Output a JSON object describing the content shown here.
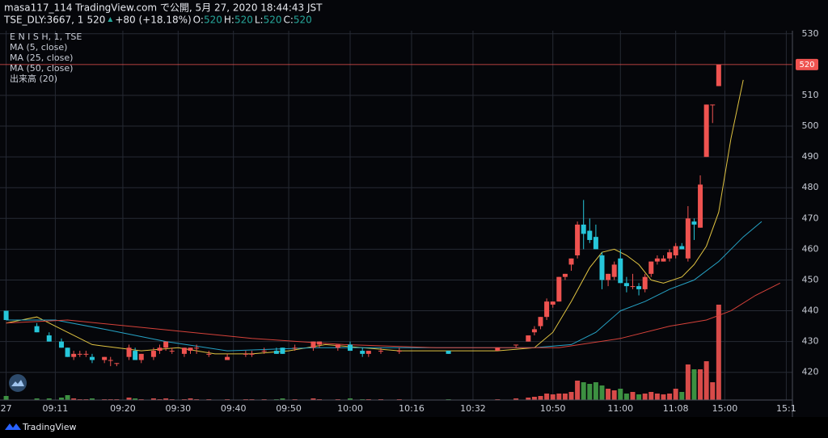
{
  "header": {
    "line1": "masa117_114 TradingView.com で公開, 5月 27, 2020 18:44:43 JST",
    "symbol": "TSE_DLY:3667, 1",
    "price": "520",
    "change": "+80 (+18.18%)",
    "ohlc": [
      {
        "label": "O:",
        "value": "520"
      },
      {
        "label": "H:",
        "value": "520"
      },
      {
        "label": "L:",
        "value": "520"
      },
      {
        "label": "C:",
        "value": "520"
      }
    ]
  },
  "legend": {
    "instrument": "E N I S H, 1, TSE",
    "volume_label": "出来高 (20)"
  },
  "footer": {
    "brand": "TradingView"
  },
  "chart_data": {
    "type": "candlestick",
    "up_color": "#ef5350",
    "down_color": "#26c6da",
    "volume_up_color": "#ef5350",
    "volume_down_color": "#43a047",
    "grid": true,
    "xlim": [
      -1,
      128
    ],
    "ylim": [
      411,
      531
    ],
    "yticks": [
      420,
      430,
      440,
      450,
      460,
      470,
      480,
      490,
      500,
      510,
      530
    ],
    "last_price": 520,
    "last_price_color": "#ef5350",
    "xticks": [
      {
        "value": 0,
        "label": "27"
      },
      {
        "value": 8,
        "label": "09:11"
      },
      {
        "value": 19,
        "label": "09:20"
      },
      {
        "value": 28,
        "label": "09:30"
      },
      {
        "value": 37,
        "label": "09:40"
      },
      {
        "value": 46,
        "label": "09:50"
      },
      {
        "value": 56,
        "label": "10:00"
      },
      {
        "value": 66,
        "label": "10:16"
      },
      {
        "value": 76,
        "label": "10:32"
      },
      {
        "value": 89,
        "label": "10:50"
      },
      {
        "value": 100,
        "label": "11:00"
      },
      {
        "value": 109,
        "label": "11:08"
      },
      {
        "value": 117,
        "label": "15:00"
      },
      {
        "value": 127,
        "label": "15:1"
      }
    ],
    "candles": [
      {
        "x": 0,
        "open": 440,
        "high": 440,
        "low": 437,
        "close": 437,
        "volume": 5
      },
      {
        "x": 5,
        "open": 435,
        "high": 436,
        "low": 433,
        "close": 433,
        "volume": 2
      },
      {
        "x": 7,
        "open": 432,
        "high": 433,
        "low": 430,
        "close": 430,
        "volume": 2
      },
      {
        "x": 9,
        "open": 430,
        "high": 431,
        "low": 428,
        "close": 428,
        "volume": 3
      },
      {
        "x": 10,
        "open": 428,
        "high": 428,
        "low": 425,
        "close": 425,
        "volume": 6
      },
      {
        "x": 11,
        "open": 425,
        "high": 427,
        "low": 424,
        "close": 426,
        "volume": 2
      },
      {
        "x": 12,
        "open": 426,
        "high": 427,
        "low": 425,
        "close": 426,
        "volume": 1
      },
      {
        "x": 13,
        "open": 426,
        "high": 427,
        "low": 425,
        "close": 426,
        "volume": 1
      },
      {
        "x": 14,
        "open": 425,
        "high": 426,
        "low": 423,
        "close": 424,
        "volume": 2
      },
      {
        "x": 16,
        "open": 424,
        "high": 425,
        "low": 423,
        "close": 425,
        "volume": 1
      },
      {
        "x": 17,
        "open": 424,
        "high": 425,
        "low": 422,
        "close": 424,
        "volume": 1
      },
      {
        "x": 18,
        "open": 423,
        "high": 423,
        "low": 422,
        "close": 423,
        "volume": 1
      },
      {
        "x": 20,
        "open": 425,
        "high": 429,
        "low": 424,
        "close": 428,
        "volume": 3
      },
      {
        "x": 21,
        "open": 427,
        "high": 428,
        "low": 424,
        "close": 424,
        "volume": 2
      },
      {
        "x": 22,
        "open": 424,
        "high": 426,
        "low": 423,
        "close": 426,
        "volume": 1
      },
      {
        "x": 24,
        "open": 425,
        "high": 428,
        "low": 424,
        "close": 427,
        "volume": 2
      },
      {
        "x": 25,
        "open": 427,
        "high": 429,
        "low": 426,
        "close": 428,
        "volume": 1
      },
      {
        "x": 26,
        "open": 428,
        "high": 430,
        "low": 427,
        "close": 430,
        "volume": 2
      },
      {
        "x": 27,
        "open": 427,
        "high": 428,
        "low": 426,
        "close": 427,
        "volume": 1
      },
      {
        "x": 29,
        "open": 426,
        "high": 428,
        "low": 425,
        "close": 428,
        "volume": 1
      },
      {
        "x": 30,
        "open": 427,
        "high": 428,
        "low": 426,
        "close": 428,
        "volume": 2
      },
      {
        "x": 31,
        "open": 428,
        "high": 429,
        "low": 426,
        "close": 428,
        "volume": 1
      },
      {
        "x": 33,
        "open": 426,
        "high": 427,
        "low": 425,
        "close": 426,
        "volume": 1
      },
      {
        "x": 36,
        "open": 424,
        "high": 426,
        "low": 424,
        "close": 425,
        "volume": 1
      },
      {
        "x": 39,
        "open": 426,
        "high": 427,
        "low": 425,
        "close": 426,
        "volume": 1
      },
      {
        "x": 40,
        "open": 426,
        "high": 427,
        "low": 425,
        "close": 426,
        "volume": 1
      },
      {
        "x": 42,
        "open": 427,
        "high": 428,
        "low": 426,
        "close": 427,
        "volume": 1
      },
      {
        "x": 44,
        "open": 427,
        "high": 428,
        "low": 426,
        "close": 426,
        "volume": 1
      },
      {
        "x": 45,
        "open": 428,
        "high": 428,
        "low": 426,
        "close": 426,
        "volume": 2
      },
      {
        "x": 47,
        "open": 428,
        "high": 429,
        "low": 427,
        "close": 428,
        "volume": 1
      },
      {
        "x": 50,
        "open": 428,
        "high": 430,
        "low": 427,
        "close": 430,
        "volume": 2
      },
      {
        "x": 51,
        "open": 429,
        "high": 430,
        "low": 428,
        "close": 430,
        "volume": 1
      },
      {
        "x": 54,
        "open": 428,
        "high": 429,
        "low": 427,
        "close": 429,
        "volume": 1
      },
      {
        "x": 56,
        "open": 429,
        "high": 430,
        "low": 427,
        "close": 427,
        "volume": 2
      },
      {
        "x": 58,
        "open": 427,
        "high": 428,
        "low": 425,
        "close": 426,
        "volume": 1
      },
      {
        "x": 59,
        "open": 426,
        "high": 427,
        "low": 425,
        "close": 427,
        "volume": 1
      },
      {
        "x": 61,
        "open": 427,
        "high": 428,
        "low": 426,
        "close": 427,
        "volume": 1
      },
      {
        "x": 64,
        "open": 427,
        "high": 428,
        "low": 426,
        "close": 427,
        "volume": 1
      },
      {
        "x": 72,
        "open": 427,
        "high": 427,
        "low": 426,
        "close": 426,
        "volume": 1
      },
      {
        "x": 80,
        "open": 427,
        "high": 428,
        "low": 427,
        "close": 428,
        "volume": 1
      },
      {
        "x": 83,
        "open": 429,
        "high": 429,
        "low": 428,
        "close": 429,
        "volume": 2
      },
      {
        "x": 85,
        "open": 430,
        "high": 432,
        "low": 430,
        "close": 432,
        "volume": 3
      },
      {
        "x": 86,
        "open": 433,
        "high": 435,
        "low": 432,
        "close": 434,
        "volume": 4
      },
      {
        "x": 87,
        "open": 435,
        "high": 438,
        "low": 434,
        "close": 438,
        "volume": 5
      },
      {
        "x": 88,
        "open": 438,
        "high": 444,
        "low": 437,
        "close": 443,
        "volume": 8
      },
      {
        "x": 89,
        "open": 442,
        "high": 443,
        "low": 441,
        "close": 443,
        "volume": 7
      },
      {
        "x": 90,
        "open": 443,
        "high": 451,
        "low": 443,
        "close": 451,
        "volume": 8
      },
      {
        "x": 91,
        "open": 451,
        "high": 452,
        "low": 450,
        "close": 452,
        "volume": 8
      },
      {
        "x": 92,
        "open": 455,
        "high": 457,
        "low": 453,
        "close": 457,
        "volume": 10
      },
      {
        "x": 93,
        "open": 458,
        "high": 469,
        "low": 457,
        "close": 468,
        "volume": 24
      },
      {
        "x": 94,
        "open": 468,
        "high": 476,
        "low": 460,
        "close": 465,
        "volume": 22
      },
      {
        "x": 95,
        "open": 466,
        "high": 470,
        "low": 462,
        "close": 463,
        "volume": 20
      },
      {
        "x": 96,
        "open": 464,
        "high": 468,
        "low": 460,
        "close": 460,
        "volume": 22
      },
      {
        "x": 97,
        "open": 458,
        "high": 459,
        "low": 447,
        "close": 450,
        "volume": 18
      },
      {
        "x": 98,
        "open": 450,
        "high": 452,
        "low": 448,
        "close": 452,
        "volume": 14
      },
      {
        "x": 99,
        "open": 451,
        "high": 456,
        "low": 450,
        "close": 455,
        "volume": 12
      },
      {
        "x": 100,
        "open": 457,
        "high": 460,
        "low": 449,
        "close": 449,
        "volume": 14
      },
      {
        "x": 101,
        "open": 449,
        "high": 451,
        "low": 446,
        "close": 448,
        "volume": 8
      },
      {
        "x": 102,
        "open": 448,
        "high": 452,
        "low": 447,
        "close": 448,
        "volume": 10
      },
      {
        "x": 103,
        "open": 448,
        "high": 449,
        "low": 445,
        "close": 447,
        "volume": 7
      },
      {
        "x": 104,
        "open": 447,
        "high": 452,
        "low": 446,
        "close": 451,
        "volume": 8
      },
      {
        "x": 105,
        "open": 452,
        "high": 456,
        "low": 451,
        "close": 456,
        "volume": 10
      },
      {
        "x": 106,
        "open": 456,
        "high": 458,
        "low": 455,
        "close": 457,
        "volume": 8
      },
      {
        "x": 107,
        "open": 456,
        "high": 458,
        "low": 456,
        "close": 457,
        "volume": 7
      },
      {
        "x": 108,
        "open": 457,
        "high": 460,
        "low": 456,
        "close": 459,
        "volume": 8
      },
      {
        "x": 109,
        "open": 458,
        "high": 462,
        "low": 457,
        "close": 461,
        "volume": 14
      },
      {
        "x": 110,
        "open": 461,
        "high": 462,
        "low": 460,
        "close": 460,
        "volume": 10
      },
      {
        "x": 111,
        "open": 457,
        "high": 474,
        "low": 456,
        "close": 470,
        "volume": 44
      },
      {
        "x": 112,
        "open": 469,
        "high": 470,
        "low": 463,
        "close": 468,
        "volume": 38
      },
      {
        "x": 113,
        "open": 467,
        "high": 484,
        "low": 467,
        "close": 481,
        "volume": 38
      },
      {
        "x": 114,
        "open": 490,
        "high": 507,
        "low": 490,
        "close": 507,
        "volume": 48
      },
      {
        "x": 115,
        "open": 507,
        "high": 507,
        "low": 501,
        "close": 507,
        "volume": 22
      },
      {
        "x": 116,
        "open": 513,
        "high": 520,
        "low": 513,
        "close": 520,
        "volume": 118
      }
    ],
    "series": [
      {
        "name": "MA (5, close)",
        "color": "#e0c341",
        "x": [
          0,
          5,
          10,
          14,
          18,
          22,
          28,
          34,
          40,
          46,
          52,
          58,
          64,
          72,
          80,
          86,
          89,
          92,
          95,
          97,
          99,
          101,
          103,
          105,
          107,
          110,
          112,
          114,
          116,
          118,
          120
        ],
        "values": [
          436,
          438,
          433,
          429,
          428,
          427,
          428,
          426,
          426,
          427,
          429,
          428,
          427,
          427,
          427,
          428,
          433,
          443,
          454,
          459,
          460,
          458,
          455,
          450,
          449,
          451,
          455,
          461,
          472,
          496,
          515
        ]
      },
      {
        "name": "MA (25, close)",
        "color": "#26a3c6",
        "x": [
          0,
          8,
          16,
          26,
          36,
          50,
          70,
          86,
          92,
          96,
          100,
          104,
          108,
          112,
          116,
          120,
          123
        ],
        "values": [
          437,
          437,
          434,
          430,
          427,
          428,
          428,
          428,
          429,
          433,
          440,
          443,
          447,
          450,
          456,
          464,
          469
        ]
      },
      {
        "name": "MA (50, close)",
        "color": "#d6423a",
        "x": [
          0,
          10,
          25,
          40,
          55,
          70,
          90,
          100,
          108,
          114,
          118,
          122,
          126
        ],
        "values": [
          436,
          437,
          434,
          431,
          429,
          428,
          428,
          431,
          435,
          437,
          440,
          445,
          449
        ]
      }
    ]
  }
}
